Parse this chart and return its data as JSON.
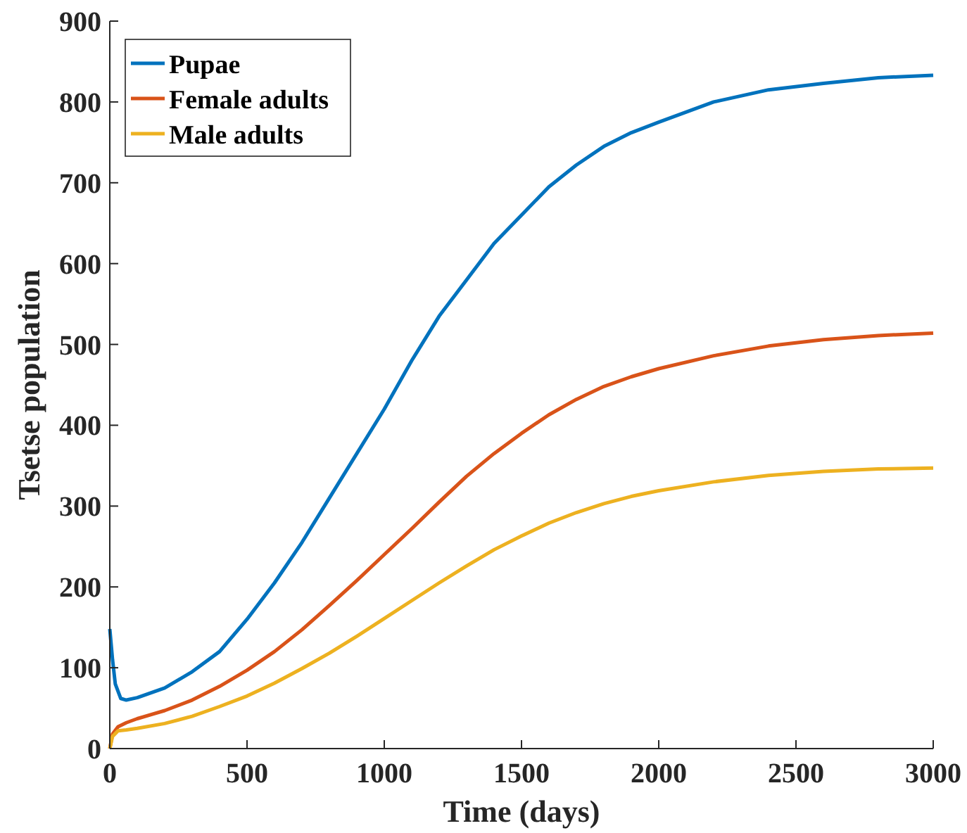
{
  "chart_data": {
    "type": "line",
    "xlabel": "Time (days)",
    "ylabel": "Tsetse population",
    "xlim": [
      0,
      3000
    ],
    "xticks": [
      0,
      500,
      1000,
      1500,
      2000,
      2500,
      3000
    ],
    "ylim": [
      0,
      900
    ],
    "yticks": [
      0,
      100,
      200,
      300,
      400,
      500,
      600,
      700,
      800,
      900
    ],
    "grid": false,
    "legend": "top left",
    "marker": "none",
    "line_style": "solid",
    "series": [
      {
        "name": "Pupae",
        "color": "#0072bd",
        "x": [
          0,
          10,
          20,
          40,
          60,
          100,
          200,
          300,
          400,
          500,
          600,
          700,
          800,
          900,
          1000,
          1100,
          1200,
          1300,
          1400,
          1500,
          1600,
          1700,
          1800,
          1900,
          2000,
          2200,
          2400,
          2600,
          2800,
          3000
        ],
        "values": [
          148,
          110,
          80,
          62,
          60,
          63,
          75,
          95,
          120,
          160,
          205,
          255,
          310,
          365,
          420,
          480,
          535,
          580,
          625,
          660,
          695,
          722,
          745,
          762,
          775,
          800,
          815,
          823,
          830,
          833
        ]
      },
      {
        "name": "Female adults",
        "color": "#d95319",
        "x": [
          0,
          10,
          30,
          60,
          100,
          200,
          300,
          400,
          500,
          600,
          700,
          800,
          900,
          1000,
          1100,
          1200,
          1300,
          1400,
          1500,
          1600,
          1700,
          1800,
          1900,
          2000,
          2200,
          2400,
          2600,
          2800,
          3000
        ],
        "values": [
          0,
          18,
          27,
          32,
          37,
          47,
          60,
          77,
          97,
          120,
          147,
          177,
          208,
          240,
          272,
          305,
          337,
          365,
          390,
          413,
          432,
          448,
          460,
          470,
          486,
          498,
          506,
          511,
          514
        ]
      },
      {
        "name": "Male adults",
        "color": "#edb120",
        "x": [
          0,
          10,
          30,
          60,
          100,
          200,
          300,
          400,
          500,
          600,
          700,
          800,
          900,
          1000,
          1100,
          1200,
          1300,
          1400,
          1500,
          1600,
          1700,
          1800,
          1900,
          2000,
          2200,
          2400,
          2600,
          2800,
          3000
        ],
        "values": [
          0,
          15,
          22,
          23,
          25,
          31,
          40,
          52,
          65,
          81,
          99,
          118,
          139,
          161,
          183,
          205,
          226,
          246,
          263,
          279,
          292,
          303,
          312,
          319,
          330,
          338,
          343,
          346,
          347
        ]
      }
    ]
  }
}
